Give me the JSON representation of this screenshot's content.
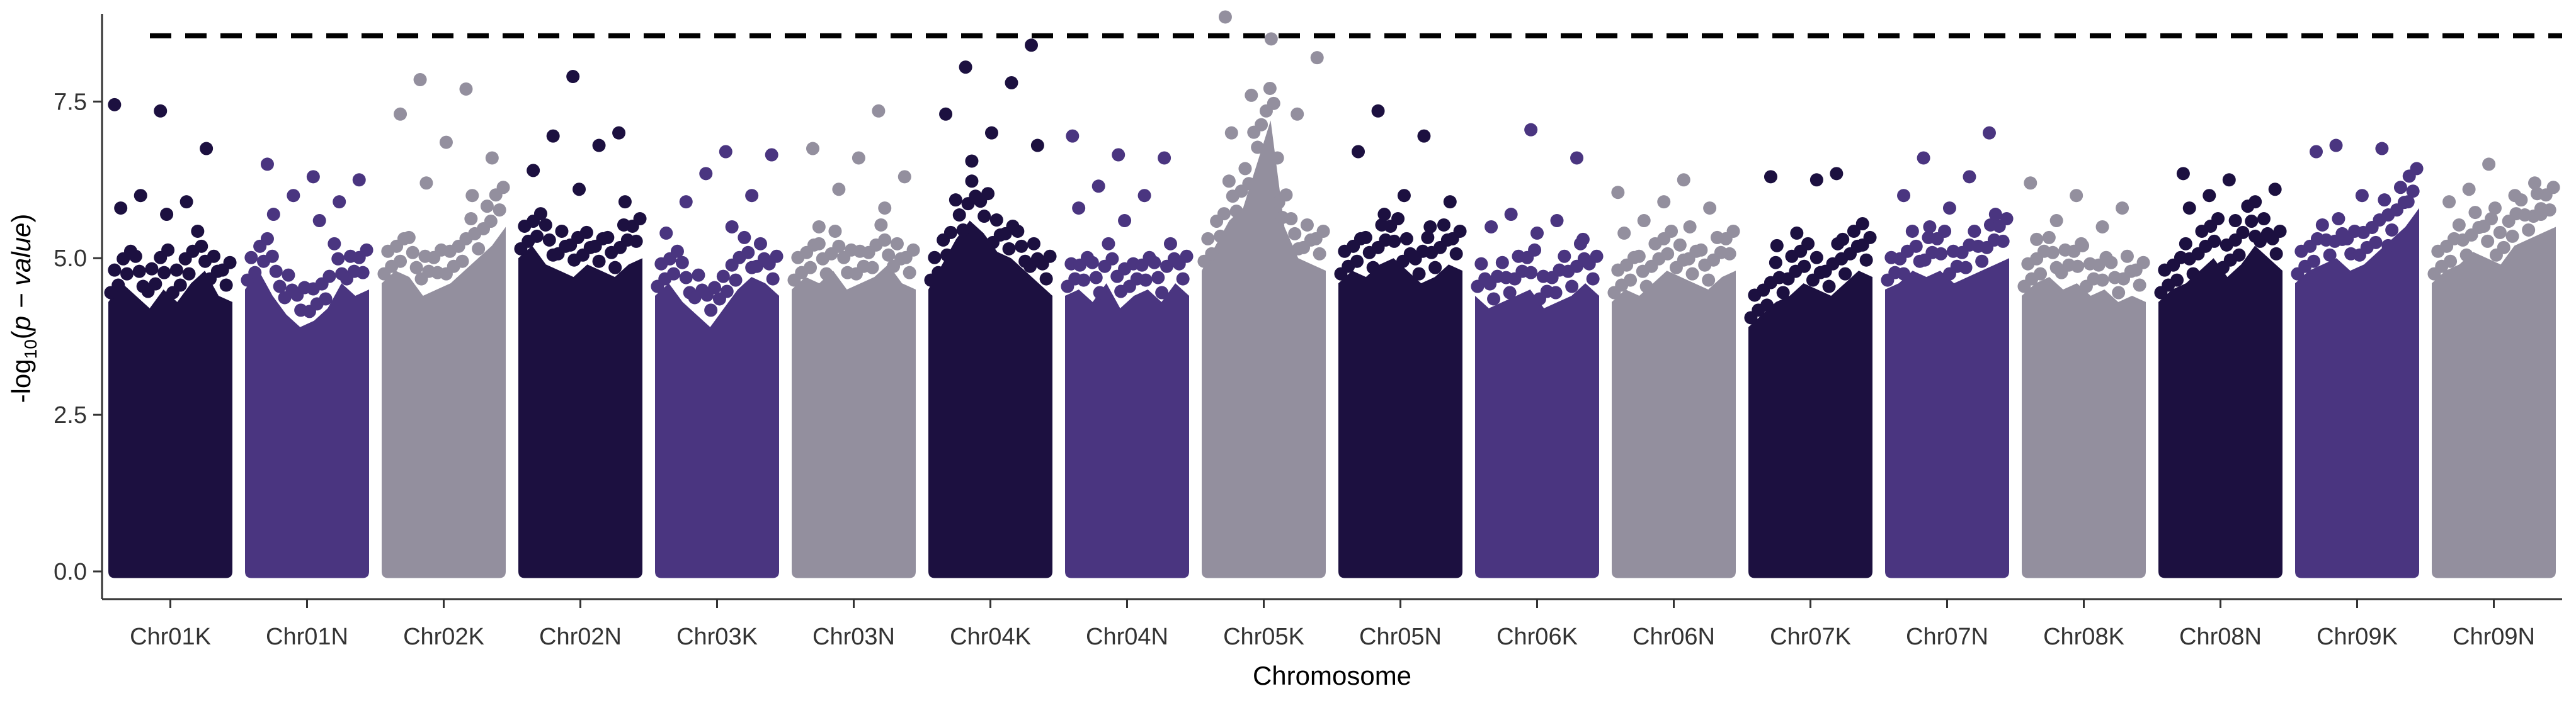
{
  "chart_data": {
    "type": "scatter",
    "subtype": "manhattan",
    "title": "",
    "xlabel": "Chromosome",
    "ylabel": {
      "prefix": "-log",
      "subscript": "10",
      "open": "(",
      "italic": "p − value",
      "close": ")"
    },
    "ylim": [
      0,
      8.9
    ],
    "yticks": [
      0.0,
      2.5,
      5.0,
      7.5
    ],
    "ytick_labels": [
      "0.0",
      "2.5",
      "5.0",
      "7.5"
    ],
    "threshold": 8.55,
    "grid": false,
    "legend": "none",
    "palette": [
      "#1c1040",
      "#4a3580",
      "#938f9e"
    ],
    "categories": [
      "Chr01K",
      "Chr01N",
      "Chr02K",
      "Chr02N",
      "Chr03K",
      "Chr03N",
      "Chr04K",
      "Chr04N",
      "Chr05K",
      "Chr05N",
      "Chr06K",
      "Chr06N",
      "Chr07K",
      "Chr07N",
      "Chr08K",
      "Chr08N",
      "Chr09K",
      "Chr09N"
    ],
    "chromosomes": [
      {
        "name": "Chr01K",
        "color": "#1c1040",
        "top": [
          7.45,
          7.35,
          6.75,
          6.0,
          5.9,
          5.8,
          5.7
        ],
        "base": [
          4.3,
          4.6,
          4.4,
          4.2,
          4.5,
          4.3,
          4.6,
          4.8,
          4.4,
          4.3
        ]
      },
      {
        "name": "Chr01N",
        "color": "#4a3580",
        "top": [
          6.5,
          6.3,
          6.25,
          6.0,
          5.9,
          5.7,
          5.6
        ],
        "base": [
          4.5,
          4.8,
          4.4,
          4.1,
          3.9,
          4.0,
          4.2,
          4.6,
          4.4,
          4.5
        ]
      },
      {
        "name": "Chr02K",
        "color": "#938f9e",
        "top": [
          7.85,
          7.7,
          7.3,
          6.85,
          6.6,
          6.2,
          6.0
        ],
        "base": [
          4.6,
          4.8,
          4.7,
          4.4,
          4.5,
          4.6,
          4.8,
          5.0,
          5.2,
          5.5
        ]
      },
      {
        "name": "Chr02N",
        "color": "#1c1040",
        "top": [
          7.9,
          7.0,
          6.95,
          6.8,
          6.4,
          6.1,
          5.9
        ],
        "base": [
          5.0,
          5.2,
          4.9,
          4.8,
          4.7,
          4.9,
          4.8,
          4.7,
          4.9,
          5.0
        ]
      },
      {
        "name": "Chr03K",
        "color": "#4a3580",
        "top": [
          6.7,
          6.65,
          6.35,
          6.0,
          5.9,
          5.5,
          5.4
        ],
        "base": [
          4.4,
          4.6,
          4.3,
          4.1,
          3.9,
          4.2,
          4.5,
          4.7,
          4.6,
          4.4
        ]
      },
      {
        "name": "Chr03N",
        "color": "#938f9e",
        "top": [
          7.35,
          6.75,
          6.6,
          6.3,
          6.1,
          5.8,
          5.5
        ],
        "base": [
          4.5,
          4.7,
          4.6,
          4.8,
          4.5,
          4.6,
          4.7,
          4.9,
          4.6,
          4.5
        ]
      },
      {
        "name": "Chr04K",
        "color": "#1c1040",
        "top": [
          8.4,
          8.05,
          7.8,
          7.3,
          7.0,
          6.8,
          6.55
        ],
        "base": [
          4.5,
          4.9,
          5.3,
          5.6,
          5.4,
          5.1,
          5.0,
          4.8,
          4.6,
          4.4
        ]
      },
      {
        "name": "Chr04N",
        "color": "#4a3580",
        "top": [
          6.95,
          6.65,
          6.6,
          6.15,
          6.0,
          5.8,
          5.6
        ],
        "base": [
          4.4,
          4.5,
          4.3,
          4.6,
          4.2,
          4.4,
          4.5,
          4.3,
          4.6,
          4.4
        ]
      },
      {
        "name": "Chr05K",
        "color": "#938f9e",
        "top": [
          8.85,
          8.5,
          8.2,
          7.6,
          7.3,
          7.0,
          6.6
        ],
        "base": [
          4.8,
          5.2,
          5.6,
          5.8,
          6.5,
          7.2,
          5.5,
          5.0,
          4.9,
          4.8
        ]
      },
      {
        "name": "Chr05N",
        "color": "#1c1040",
        "top": [
          7.35,
          6.95,
          6.7,
          6.0,
          5.9,
          5.7,
          5.5
        ],
        "base": [
          4.6,
          4.8,
          4.7,
          4.9,
          5.0,
          4.8,
          4.6,
          4.7,
          4.9,
          4.8
        ]
      },
      {
        "name": "Chr06K",
        "color": "#4a3580",
        "top": [
          7.05,
          6.6,
          5.7,
          5.6,
          5.5,
          5.4,
          5.3
        ],
        "base": [
          4.4,
          4.2,
          4.3,
          4.4,
          4.5,
          4.2,
          4.3,
          4.4,
          4.6,
          4.4
        ]
      },
      {
        "name": "Chr06N",
        "color": "#938f9e",
        "top": [
          6.25,
          6.05,
          5.9,
          5.8,
          5.6,
          5.5,
          5.4
        ],
        "base": [
          4.3,
          4.5,
          4.4,
          4.6,
          4.8,
          4.7,
          4.6,
          4.5,
          4.7,
          4.8
        ]
      },
      {
        "name": "Chr07K",
        "color": "#1c1040",
        "top": [
          6.35,
          6.3,
          6.25,
          5.55,
          5.4,
          5.3,
          5.2
        ],
        "base": [
          3.9,
          4.1,
          4.3,
          4.4,
          4.6,
          4.5,
          4.4,
          4.6,
          4.8,
          4.7
        ]
      },
      {
        "name": "Chr07N",
        "color": "#4a3580",
        "top": [
          7.0,
          6.6,
          6.3,
          6.0,
          5.8,
          5.7,
          5.5
        ],
        "base": [
          4.5,
          4.6,
          4.8,
          4.7,
          4.8,
          4.6,
          4.7,
          4.8,
          4.9,
          5.0
        ]
      },
      {
        "name": "Chr08K",
        "color": "#938f9e",
        "top": [
          6.2,
          6.0,
          5.8,
          5.6,
          5.5,
          5.3,
          5.2
        ],
        "base": [
          4.4,
          4.6,
          4.7,
          4.5,
          4.6,
          4.4,
          4.5,
          4.3,
          4.4,
          4.3
        ]
      },
      {
        "name": "Chr08N",
        "color": "#1c1040",
        "top": [
          6.35,
          6.25,
          6.1,
          6.0,
          5.9,
          5.8,
          5.6
        ],
        "base": [
          4.3,
          4.5,
          4.6,
          4.8,
          5.0,
          4.7,
          4.9,
          5.2,
          5.0,
          4.8
        ]
      },
      {
        "name": "Chr09K",
        "color": "#4a3580",
        "top": [
          6.8,
          6.75,
          6.7,
          6.0,
          5.9,
          5.3,
          5.2
        ],
        "base": [
          4.6,
          4.8,
          4.9,
          5.0,
          4.8,
          4.9,
          5.1,
          5.3,
          5.5,
          5.8
        ]
      },
      {
        "name": "Chr09N",
        "color": "#938f9e",
        "top": [
          6.5,
          6.2,
          6.1,
          6.0,
          5.9,
          5.8,
          5.7
        ],
        "base": [
          4.6,
          4.8,
          4.9,
          5.1,
          5.0,
          4.9,
          5.2,
          5.3,
          5.4,
          5.5
        ]
      }
    ]
  }
}
